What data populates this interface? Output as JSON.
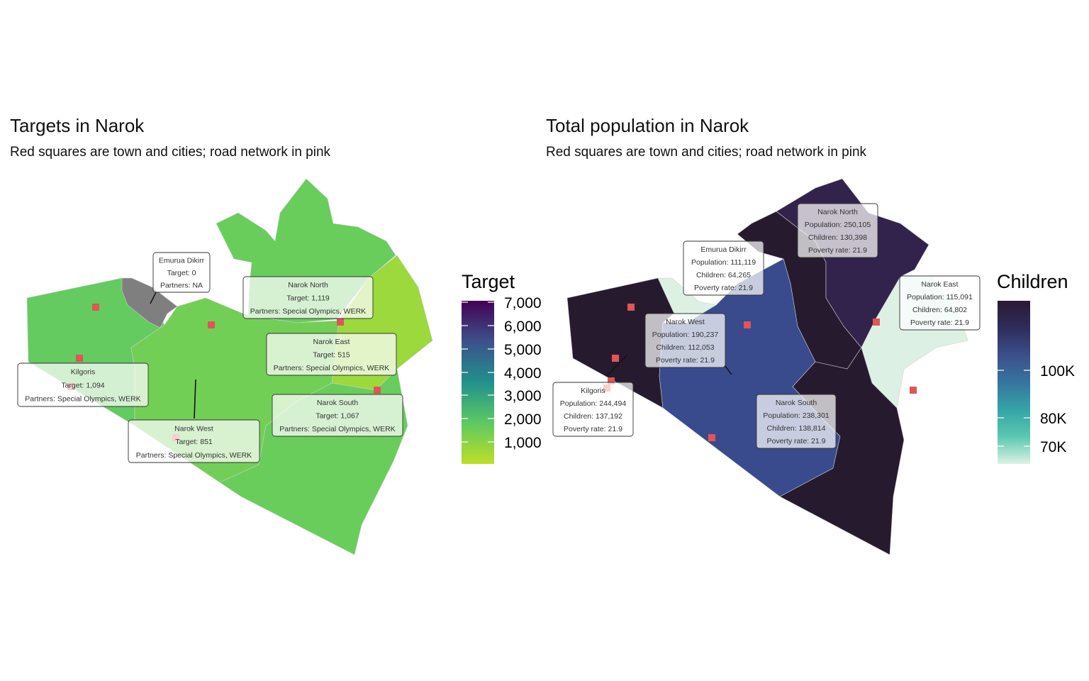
{
  "left": {
    "title": "Targets in Narok",
    "subtitle": "Red squares are town and cities; road network in pink",
    "legend": {
      "title": "Target",
      "ticks": [
        "7,000",
        "6,000",
        "5,000",
        "4,000",
        "3,000",
        "2,000",
        "1,000"
      ],
      "colors": [
        "#440154",
        "#3b528b",
        "#21918c",
        "#5ec962",
        "#bddf26"
      ]
    },
    "labels": [
      {
        "lines": [
          "Emurua Dikirr",
          "Target: 0",
          "Partners: NA"
        ]
      },
      {
        "lines": [
          "Narok North",
          "Target: 1,119",
          "Partners: Special Olympics, WERK"
        ]
      },
      {
        "lines": [
          "Narok East",
          "Target: 515",
          "Partners: Special Olympics, WERK"
        ]
      },
      {
        "lines": [
          "Kilgoris",
          "Target: 1,094",
          "Partners: Special Olympics, WERK"
        ]
      },
      {
        "lines": [
          "Narok South",
          "Target: 1,067",
          "Partners: Special Olympics, WERK"
        ]
      },
      {
        "lines": [
          "Narok West",
          "Target: 851",
          "Partners: Special Olympics, WERK"
        ]
      }
    ],
    "fills": {
      "kilgoris": "#63cb5f",
      "emurua_dikirr": "#7f7f7f",
      "narok_north": "#68cd5b",
      "narok_east": "#9bd93c",
      "narok_west": "#72cf55",
      "narok_south": "#68cd5b"
    }
  },
  "right": {
    "title": "Total population in Narok",
    "subtitle": "Red squares are town and cities; road network in pink",
    "legend": {
      "title": "Children",
      "ticks": [
        "100K",
        "80K",
        "70K"
      ],
      "colors": [
        "#2a1a33",
        "#2f2c5c",
        "#3b4f8a",
        "#36749e",
        "#35a4a8",
        "#5bc8b0",
        "#dcf2e6"
      ]
    },
    "labels": [
      {
        "lines": [
          "Narok North",
          "Population: 250,105",
          "Children: 130,398",
          "Poverty rate: 21.9"
        ]
      },
      {
        "lines": [
          "Emurua Dikirr",
          "Population: 111,119",
          "Children: 64,265",
          "Poverty rate: 21.9"
        ]
      },
      {
        "lines": [
          "Narok East",
          "Population: 115,091",
          "Children: 64,802",
          "Poverty rate: 21.9"
        ]
      },
      {
        "lines": [
          "Narok West",
          "Population: 190,237",
          "Children: 112,053",
          "Poverty rate: 21.9"
        ]
      },
      {
        "lines": [
          "Kilgoris",
          "Population: 244,494",
          "Children: 137,192",
          "Poverty rate: 21.9"
        ]
      },
      {
        "lines": [
          "Narok South",
          "Population: 238,301",
          "Children: 138,814",
          "Poverty rate: 21.9"
        ]
      }
    ],
    "fills": {
      "kilgoris": "#261b2e",
      "emurua_dikirr": "#dcf1e4",
      "narok_north": "#261b2e",
      "narok_north_east": "#32234d",
      "narok_east": "#dcf1e4",
      "narok_west": "#394a8d",
      "narok_south": "#261b2e"
    }
  },
  "town_color": "#e05555"
}
